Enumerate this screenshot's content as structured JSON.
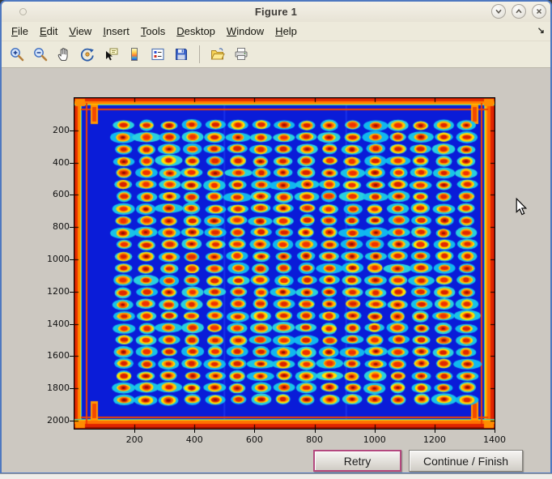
{
  "window": {
    "title": "Figure 1",
    "controls": {
      "minimize": "chevron-down",
      "maximize": "chevron-up",
      "close": "x"
    }
  },
  "menu": {
    "items": [
      {
        "label": "File"
      },
      {
        "label": "Edit"
      },
      {
        "label": "View"
      },
      {
        "label": "Insert"
      },
      {
        "label": "Tools"
      },
      {
        "label": "Desktop"
      },
      {
        "label": "Window"
      },
      {
        "label": "Help"
      }
    ],
    "overflow_arrow": "↘"
  },
  "toolbar": {
    "tools": [
      "zoom-in",
      "zoom-out",
      "pan",
      "rotate-3d",
      "data-cursor",
      "insert-colorbar",
      "insert-legend",
      "save-figure",
      "open-file",
      "print-figure"
    ]
  },
  "dialog_buttons": {
    "retry": "Retry",
    "continue_finish": "Continue / Finish"
  },
  "colors": {
    "window_border": "#4e78c0",
    "titlebar_bg": "#ede9dc",
    "figure_bg": "#ccc8c1",
    "retry_focus_border": "#b3487e",
    "axes_line": "#000000"
  },
  "chart_data": {
    "type": "heatmap",
    "title": "",
    "xlabel": "",
    "ylabel": "",
    "x_ticks": [
      200,
      400,
      600,
      800,
      1000,
      1200,
      1400
    ],
    "y_ticks": [
      200,
      400,
      600,
      800,
      1000,
      1200,
      1400,
      1600,
      1800,
      2000
    ],
    "x_range": [
      1,
      1400
    ],
    "y_range": [
      1,
      2050
    ],
    "y_direction": "down",
    "grid": "off",
    "colormap": "jet",
    "description": "Jet-colormap intensity image of a 384-well microplate: 24 rows x 16 columns of hot (red/orange-core) spots with cyan halos on a cold deep-blue background; hot red/orange band around the plate edges with orange corner posts.",
    "plate_grid": {
      "rows": 24,
      "cols": 16,
      "first_spot_center": [
        163,
        168
      ],
      "pitch": [
        76.3,
        74.0
      ]
    },
    "palette": {
      "background": "#0a1cd8",
      "halo": "#1ec8e6",
      "ring_outer": "#ffd400",
      "ring_inner": "#ff7800",
      "spot_core": "#e02800",
      "spot_core_dark": "#a01200",
      "edge_band_red": "#e83000",
      "edge_band_orange": "#ff8400",
      "edge_band_yellow": "#ffc800",
      "edge_band_cyan": "#2ac8c8"
    }
  }
}
